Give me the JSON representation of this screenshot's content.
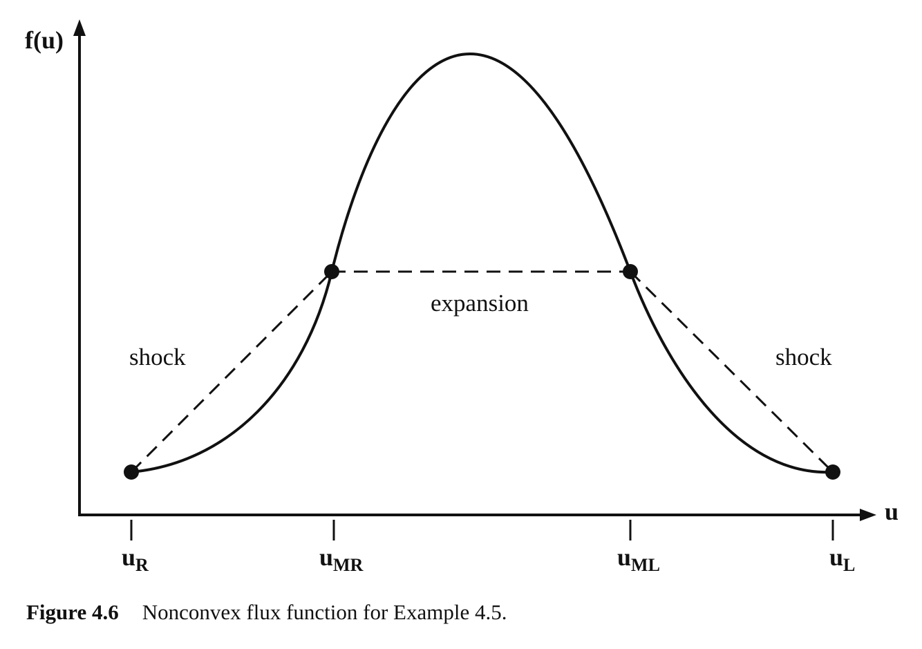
{
  "axes": {
    "y_label": "f(u)",
    "x_label": "u"
  },
  "ticks": [
    {
      "main": "u",
      "sub": "R"
    },
    {
      "main": "u",
      "sub": "MR"
    },
    {
      "main": "u",
      "sub": "ML"
    },
    {
      "main": "u",
      "sub": "L"
    }
  ],
  "regions": {
    "left": "shock",
    "middle": "expansion",
    "right": "shock"
  },
  "caption": {
    "number": "Figure 4.6",
    "text": "Nonconvex flux function for Example 4.5."
  },
  "colors": {
    "ink": "#111111"
  }
}
